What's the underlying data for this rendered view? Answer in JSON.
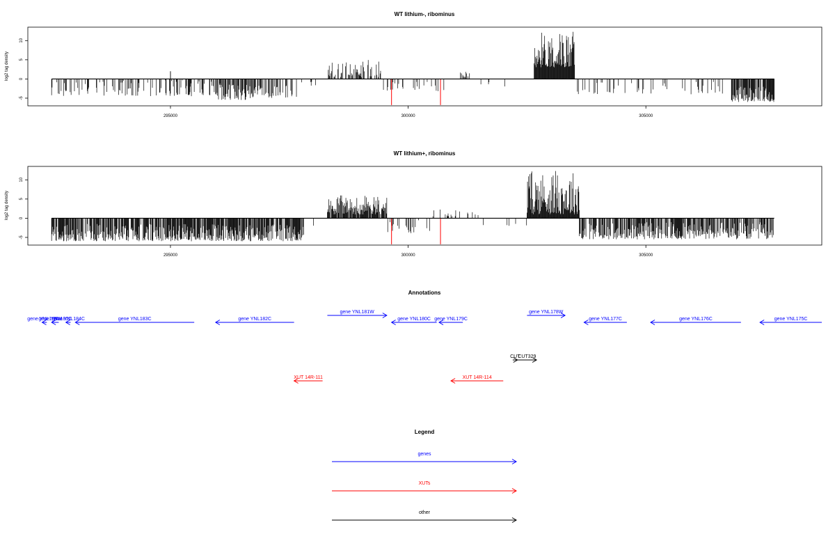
{
  "chart_data": [
    {
      "type": "bar",
      "title": "WT lithium-, ribominus",
      "ylabel": "log2 tag density",
      "xlim": [
        292000,
        308700
      ],
      "ylim": [
        -7,
        13.5
      ],
      "x_ticks": [
        295000,
        300000,
        305000
      ],
      "x_tick_labels": [
        "295000",
        "300000",
        "305000"
      ],
      "y_ticks": [
        -5,
        0,
        5,
        10
      ],
      "y_tick_labels": [
        "-5",
        "0",
        "5",
        "10"
      ],
      "x_range": [
        292500,
        307700
      ],
      "series": [
        {
          "color": "#000000",
          "segments": [
            {
              "from": 292500,
              "to": 295950,
              "density": 0.28,
              "min": -4.5,
              "max": -0.3
            },
            {
              "from": 295000,
              "to": 295000,
              "density": 1,
              "min": 2,
              "max": 2
            },
            {
              "from": 295950,
              "to": 296650,
              "density": 0.6,
              "min": -5.5,
              "max": -1
            },
            {
              "from": 296650,
              "to": 297700,
              "density": 0.45,
              "min": -5,
              "max": -1.5
            },
            {
              "from": 297700,
              "to": 298300,
              "density": 0.05,
              "min": -2,
              "max": -0.5
            },
            {
              "from": 298300,
              "to": 299450,
              "density": 0.5,
              "min": 0.5,
              "max": 5
            },
            {
              "from": 299450,
              "to": 300400,
              "density": 0.15,
              "min": -3,
              "max": -0.5
            },
            {
              "from": 300400,
              "to": 301000,
              "density": 0.12,
              "min": -3.5,
              "max": -0.5
            },
            {
              "from": 301050,
              "to": 301300,
              "density": 0.3,
              "min": 0.5,
              "max": 2.5
            },
            {
              "from": 301300,
              "to": 302600,
              "density": 0.02,
              "min": -2,
              "max": -0.5
            },
            {
              "from": 302650,
              "to": 303500,
              "density": 1,
              "min": 3,
              "max": 12.5
            },
            {
              "from": 303500,
              "to": 306800,
              "density": 0.12,
              "min": -4,
              "max": -0.5
            },
            {
              "from": 306800,
              "to": 307700,
              "density": 0.8,
              "min": -6,
              "max": -2
            }
          ]
        },
        {
          "color": "#ff0000",
          "spikes": [
            {
              "x": 299650,
              "y": -6.8
            },
            {
              "x": 300680,
              "y": -6.8
            }
          ]
        }
      ]
    },
    {
      "type": "bar",
      "title": "WT lithium+, ribominus",
      "ylabel": "log2 tag density",
      "xlim": [
        292000,
        308700
      ],
      "ylim": [
        -7,
        13.5
      ],
      "x_ticks": [
        295000,
        300000,
        305000
      ],
      "x_tick_labels": [
        "295000",
        "300000",
        "305000"
      ],
      "y_ticks": [
        -5,
        0,
        5,
        10
      ],
      "y_tick_labels": [
        "-5",
        "0",
        "5",
        "10"
      ],
      "x_range": [
        292500,
        307700
      ],
      "series": [
        {
          "color": "#000000",
          "segments": [
            {
              "from": 292500,
              "to": 297800,
              "density": 0.8,
              "min": -6,
              "max": -1.5
            },
            {
              "from": 297800,
              "to": 298300,
              "density": 0.05,
              "min": -2,
              "max": -0.5
            },
            {
              "from": 298300,
              "to": 299550,
              "density": 0.9,
              "min": 1,
              "max": 6
            },
            {
              "from": 299550,
              "to": 300500,
              "density": 0.2,
              "min": -4,
              "max": -0.5
            },
            {
              "from": 300500,
              "to": 301500,
              "density": 0.15,
              "min": 0.5,
              "max": 2.5
            },
            {
              "from": 301500,
              "to": 302500,
              "density": 0.03,
              "min": -2,
              "max": -0.5
            },
            {
              "from": 302500,
              "to": 303600,
              "density": 1,
              "min": 1,
              "max": 12.5
            },
            {
              "from": 303600,
              "to": 307700,
              "density": 0.7,
              "min": -5.5,
              "max": -1
            }
          ]
        },
        {
          "color": "#ff0000",
          "spikes": [
            {
              "x": 299650,
              "y": -6.8
            },
            {
              "x": 300680,
              "y": -6.8
            }
          ]
        }
      ]
    },
    {
      "type": "annotation_track",
      "title": "Annotations",
      "xlim": [
        292000,
        308700
      ],
      "features": [
        {
          "label": "gene YNL186W",
          "from": 292300,
          "to": 292400,
          "strand": "-",
          "color": "#0000ff",
          "row": "gene"
        },
        {
          "label": "gene YNL185C",
          "from": 292500,
          "to": 292650,
          "strand": "-",
          "color": "#0000ff",
          "row": "gene"
        },
        {
          "label": "gene YNL184C",
          "from": 292800,
          "to": 292900,
          "strand": "-",
          "color": "#0000ff",
          "row": "gene"
        },
        {
          "label": "gene YNL183C",
          "from": 293000,
          "to": 295500,
          "strand": "-",
          "color": "#0000ff",
          "row": "gene"
        },
        {
          "label": "gene YNL182C",
          "from": 295950,
          "to": 297600,
          "strand": "-",
          "color": "#0000ff",
          "row": "gene"
        },
        {
          "label": "gene YNL181W",
          "from": 298300,
          "to": 299550,
          "strand": "+",
          "color": "#0000ff",
          "row": "gene_top"
        },
        {
          "label": "gene YNL180C",
          "from": 299650,
          "to": 300600,
          "strand": "-",
          "color": "#0000ff",
          "row": "gene"
        },
        {
          "label": "gene YNL179C",
          "from": 300650,
          "to": 301150,
          "strand": "-",
          "color": "#0000ff",
          "row": "gene"
        },
        {
          "label": "gene YNL178W",
          "from": 302500,
          "to": 303300,
          "strand": "+",
          "color": "#0000ff",
          "row": "gene_top"
        },
        {
          "label": "gene YNL177C",
          "from": 303700,
          "to": 304600,
          "strand": "-",
          "color": "#0000ff",
          "row": "gene"
        },
        {
          "label": "gene YNL176C",
          "from": 305100,
          "to": 307000,
          "strand": "-",
          "color": "#0000ff",
          "row": "gene"
        },
        {
          "label": "gene YNL175C",
          "from": 307400,
          "to": 308700,
          "strand": "-",
          "color": "#0000ff",
          "row": "gene"
        },
        {
          "label": "CUT",
          "from": 302200,
          "to": 302300,
          "strand": "+",
          "color": "#000000",
          "row": "cut"
        },
        {
          "label": "CUT329",
          "from": 302300,
          "to": 302700,
          "strand": "+",
          "color": "#000000",
          "row": "cut"
        },
        {
          "label": "XUT 14R-111",
          "from": 297600,
          "to": 298200,
          "strand": "-",
          "color": "#ff0000",
          "row": "xut"
        },
        {
          "label": "XUT 14R-114",
          "from": 300900,
          "to": 302000,
          "strand": "-",
          "color": "#ff0000",
          "row": "xut"
        }
      ]
    },
    {
      "type": "legend",
      "title": "Legend",
      "entries": [
        {
          "label": "genes",
          "color": "#0000ff"
        },
        {
          "label": "XUTs",
          "color": "#ff0000"
        },
        {
          "label": "other",
          "color": "#000000"
        }
      ]
    }
  ]
}
